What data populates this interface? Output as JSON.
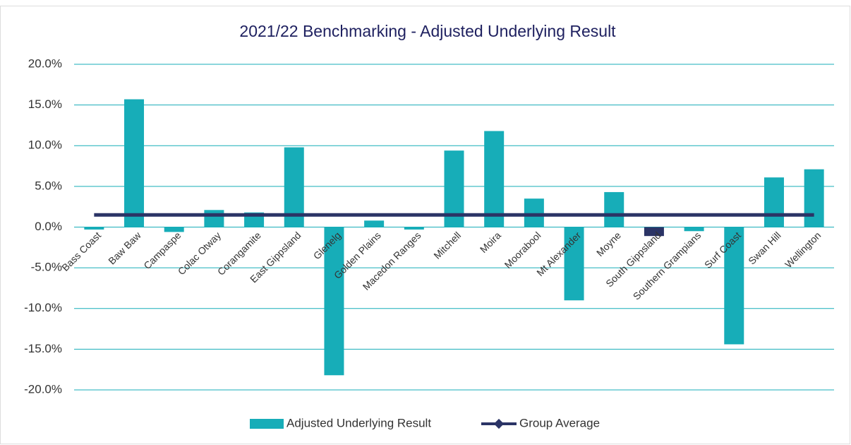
{
  "chart_data": {
    "type": "bar",
    "title": "2021/22 Benchmarking - Adjusted Underlying Result",
    "categories": [
      "Bass Coast",
      "Baw Baw",
      "Campaspe",
      "Colac Otway",
      "Corangamite",
      "East Gippsland",
      "Glenelg",
      "Golden Plains",
      "Macedon Ranges",
      "Mitchell",
      "Moira",
      "Moorabool",
      "Mt Alexander",
      "Moyne",
      "South Gippsland",
      "Southern Grampians",
      "Surf Coast",
      "Swan Hill",
      "Wellington"
    ],
    "series": [
      {
        "name": "Adjusted Underlying Result",
        "type": "bar",
        "color": "#17adb8",
        "point_colors": [
          "#17adb8",
          "#17adb8",
          "#17adb8",
          "#17adb8",
          "#17adb8",
          "#17adb8",
          "#17adb8",
          "#17adb8",
          "#17adb8",
          "#17adb8",
          "#17adb8",
          "#17adb8",
          "#17adb8",
          "#17adb8",
          "#2b3466",
          "#17adb8",
          "#17adb8",
          "#17adb8",
          "#17adb8"
        ],
        "values": [
          -0.3,
          15.7,
          -0.6,
          2.1,
          1.8,
          9.8,
          -18.2,
          0.8,
          -0.3,
          9.4,
          11.8,
          3.5,
          -9.0,
          4.3,
          -1.1,
          -0.5,
          -14.4,
          6.1,
          7.1
        ]
      },
      {
        "name": "Group Average",
        "type": "line",
        "color": "#2b3466",
        "values": [
          1.5,
          1.5,
          1.5,
          1.5,
          1.5,
          1.5,
          1.5,
          1.5,
          1.5,
          1.5,
          1.5,
          1.5,
          1.5,
          1.5,
          1.5,
          1.5,
          1.5,
          1.5,
          1.5
        ]
      }
    ],
    "ylim": [
      -20,
      20
    ],
    "yticks": [
      {
        "value": -20,
        "label": "-20.0%"
      },
      {
        "value": -15,
        "label": "-15.0%"
      },
      {
        "value": -10,
        "label": "-10.0%"
      },
      {
        "value": -5,
        "label": "-5.0%"
      },
      {
        "value": 0,
        "label": "0.0%"
      },
      {
        "value": 5,
        "label": "5.0%"
      },
      {
        "value": 10,
        "label": "10.0%"
      },
      {
        "value": 15,
        "label": "15.0%"
      },
      {
        "value": 20,
        "label": "20.0%"
      }
    ],
    "grid": true,
    "grid_color": "#17adb8",
    "legend": "bottom"
  }
}
